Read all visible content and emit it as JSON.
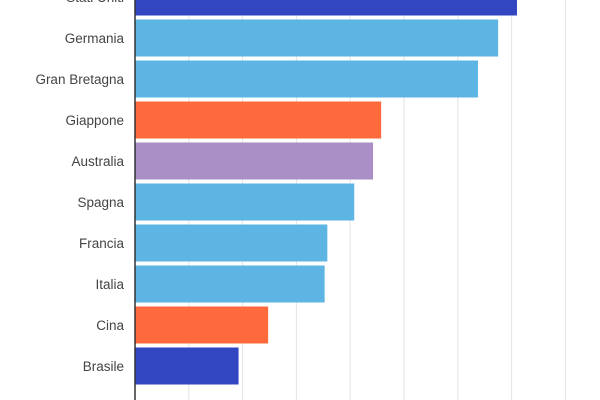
{
  "chart_data": {
    "type": "bar",
    "orientation": "horizontal",
    "categories": [
      "Stati Uniti",
      "Germania",
      "Gran Bretagna",
      "Giappone",
      "Australia",
      "Spagna",
      "Francia",
      "Italia",
      "Cina",
      "Brasile"
    ],
    "values": [
      142,
      135,
      127.5,
      91.5,
      88.5,
      81.5,
      71.5,
      70.5,
      49.5,
      38.5
    ],
    "colors": [
      "#3346c2",
      "#5db5e3",
      "#5db5e3",
      "#ff6a3d",
      "#a98fc6",
      "#5db5e3",
      "#5db5e3",
      "#5db5e3",
      "#ff6a3d",
      "#3346c2"
    ],
    "xticks": [
      0,
      20,
      40,
      60,
      80,
      100,
      120,
      140,
      160
    ],
    "xlim": [
      0,
      160
    ],
    "grid": true,
    "title": "",
    "xlabel": "",
    "ylabel": ""
  }
}
